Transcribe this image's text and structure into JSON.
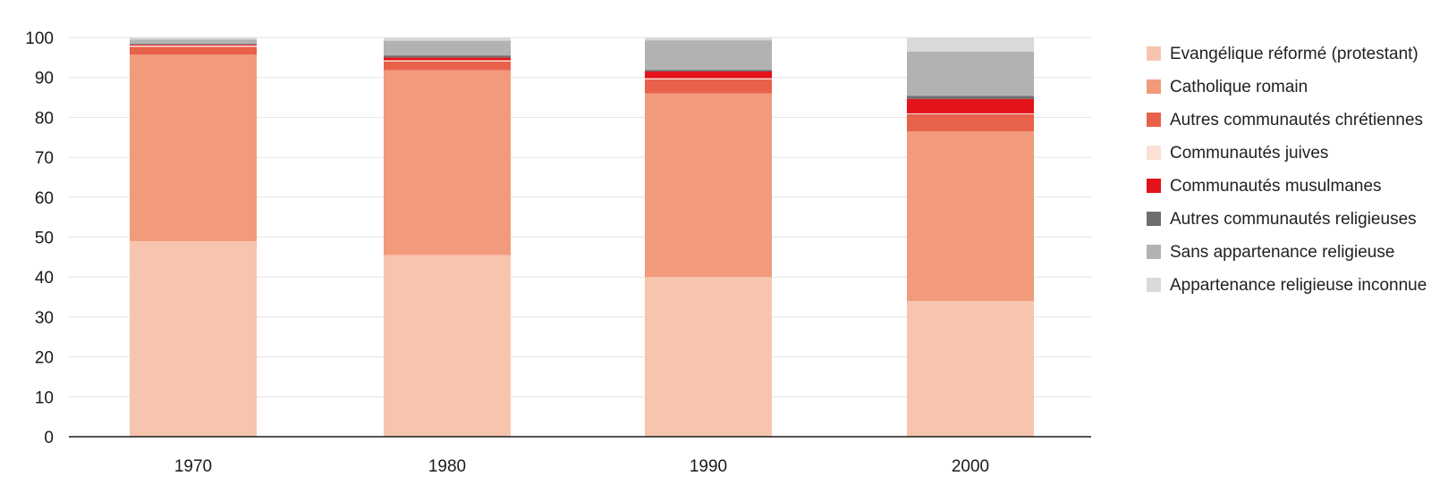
{
  "chart_data": {
    "type": "bar",
    "stacked": true,
    "categories": [
      "1970",
      "1980",
      "1990",
      "2000"
    ],
    "ylim": [
      0,
      100
    ],
    "yticks": [
      "0",
      "10",
      "20",
      "30",
      "40",
      "50",
      "60",
      "70",
      "80",
      "90",
      "100"
    ],
    "xlabel": "",
    "ylabel": "",
    "title": "",
    "grid": true,
    "legend_position": "right",
    "series": [
      {
        "name": "Evangélique réformé (protestant)",
        "color": "#f7c4ae",
        "values": [
          49.0,
          45.5,
          40.0,
          34.0
        ]
      },
      {
        "name": "Catholique romain",
        "color": "#f29a7c",
        "values": [
          46.7,
          46.3,
          46.0,
          42.5
        ]
      },
      {
        "name": "Autres communautés chrétiennes",
        "color": "#e8614a",
        "values": [
          2.0,
          2.2,
          3.5,
          4.3
        ]
      },
      {
        "name": "Communautés juives",
        "color": "#fbe0d6",
        "values": [
          0.3,
          0.3,
          0.3,
          0.2
        ]
      },
      {
        "name": "Communautés musulmanes",
        "color": "#e3121b",
        "values": [
          0.2,
          0.7,
          1.7,
          3.6
        ]
      },
      {
        "name": "Autres communautés religieuses",
        "color": "#6e6e6e",
        "values": [
          0.2,
          0.5,
          0.4,
          0.8
        ]
      },
      {
        "name": "Sans appartenance religieuse",
        "color": "#b2b2b2",
        "values": [
          1.1,
          3.7,
          7.4,
          11.1
        ]
      },
      {
        "name": "Appartenance religieuse inconnue",
        "color": "#d9d9d9",
        "values": [
          0.5,
          0.8,
          0.7,
          3.5
        ]
      }
    ]
  },
  "legend": {
    "items": [
      {
        "label": "Evangélique réformé (protestant)",
        "color": "#f7c4ae"
      },
      {
        "label": "Catholique romain",
        "color": "#f29a7c"
      },
      {
        "label": "Autres communautés chrétiennes",
        "color": "#e8614a"
      },
      {
        "label": "Communautés juives",
        "color": "#fbe0d6"
      },
      {
        "label": "Communautés musulmanes",
        "color": "#e3121b"
      },
      {
        "label": "Autres communautés religieuses",
        "color": "#6e6e6e"
      },
      {
        "label": "Sans appartenance religieuse",
        "color": "#b2b2b2"
      },
      {
        "label": "Appartenance religieuse inconnue",
        "color": "#d9d9d9"
      }
    ]
  }
}
